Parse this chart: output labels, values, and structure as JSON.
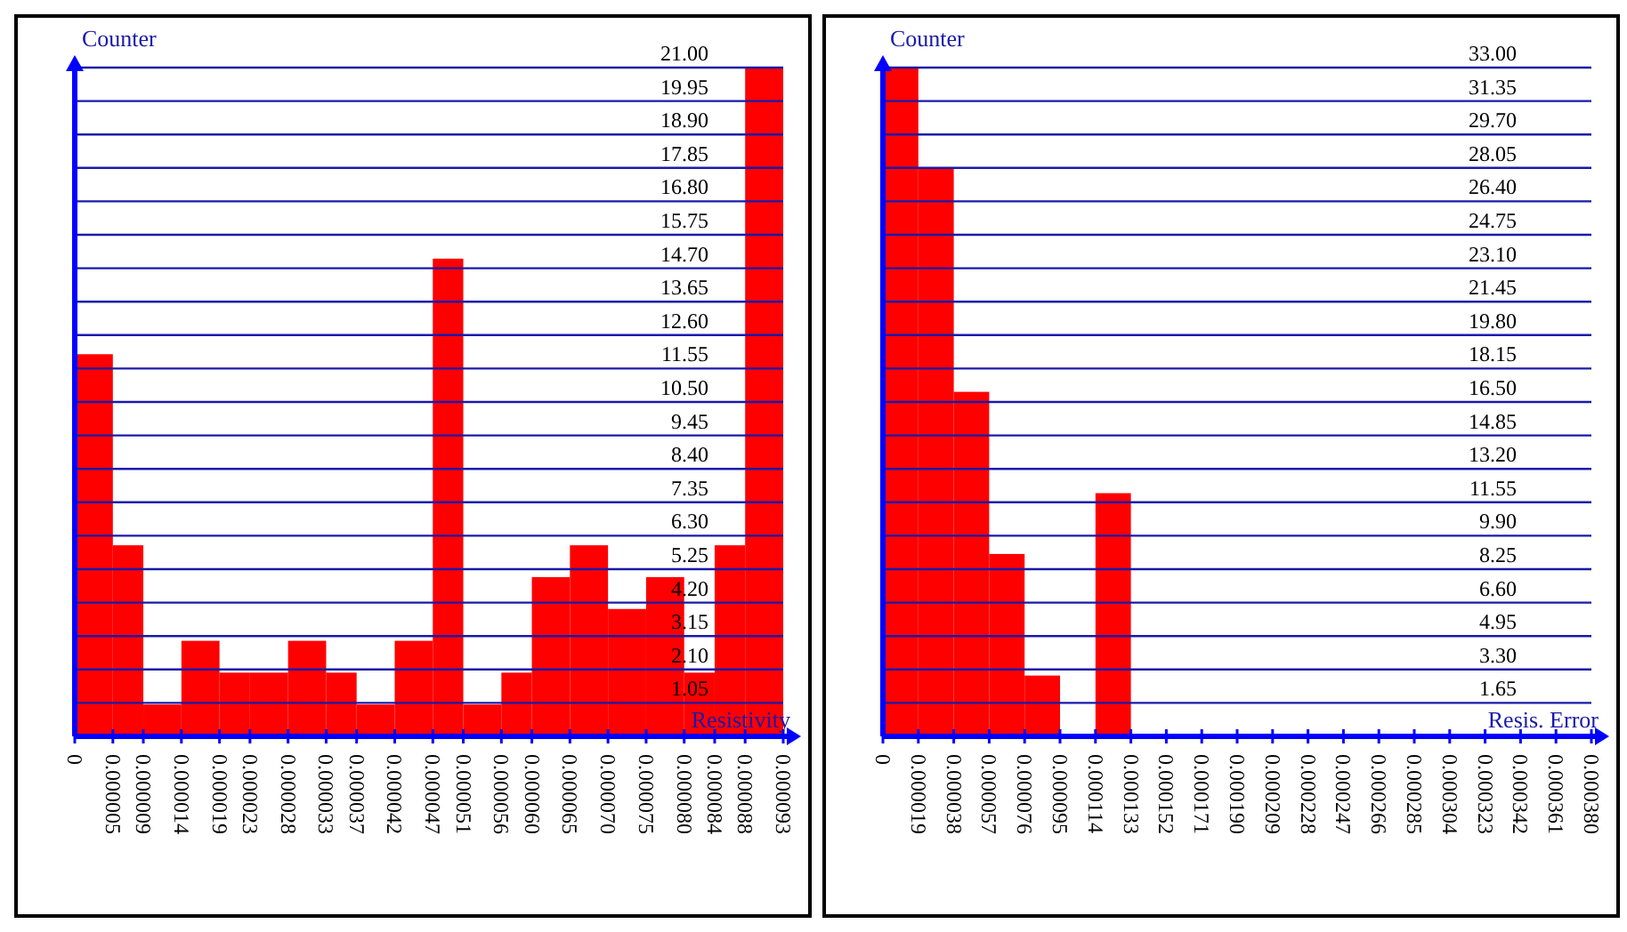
{
  "chart_data": [
    {
      "type": "histogram",
      "xlabel": "Resistivity",
      "ylabel": "Counter",
      "color": "#ff0000",
      "grid": "y",
      "legend": false,
      "bins": [
        0,
        5e-06,
        9e-06,
        1.4e-05,
        1.9e-05,
        2.3e-05,
        2.8e-05,
        3.3e-05,
        3.7e-05,
        4.2e-05,
        4.7e-05,
        5.1e-05,
        5.6e-05,
        6e-05,
        6.5e-05,
        7e-05,
        7.5e-05,
        8e-05,
        8.4e-05,
        8.8e-05,
        9.3e-05
      ],
      "values": [
        12,
        6,
        1,
        3,
        2,
        2,
        3,
        2,
        1,
        3,
        15,
        1,
        2,
        5,
        6,
        4,
        5,
        2,
        6,
        21
      ],
      "xlim": [
        0,
        9.3e-05
      ],
      "xticks": [
        {
          "value": 0,
          "label": "0"
        },
        {
          "value": 5e-06,
          "label": "0.000005"
        },
        {
          "value": 9e-06,
          "label": "0.000009"
        },
        {
          "value": 1.4e-05,
          "label": "0.000014"
        },
        {
          "value": 1.9e-05,
          "label": "0.000019"
        },
        {
          "value": 2.3e-05,
          "label": "0.000023"
        },
        {
          "value": 2.8e-05,
          "label": "0.000028"
        },
        {
          "value": 3.3e-05,
          "label": "0.000033"
        },
        {
          "value": 3.7e-05,
          "label": "0.000037"
        },
        {
          "value": 4.2e-05,
          "label": "0.000042"
        },
        {
          "value": 4.7e-05,
          "label": "0.000047"
        },
        {
          "value": 5.1e-05,
          "label": "0.000051"
        },
        {
          "value": 5.6e-05,
          "label": "0.000056"
        },
        {
          "value": 6e-05,
          "label": "0.000060"
        },
        {
          "value": 6.5e-05,
          "label": "0.000065"
        },
        {
          "value": 7e-05,
          "label": "0.000070"
        },
        {
          "value": 7.5e-05,
          "label": "0.000075"
        },
        {
          "value": 8e-05,
          "label": "0.000080"
        },
        {
          "value": 8.4e-05,
          "label": "0.000084"
        },
        {
          "value": 8.8e-05,
          "label": "0.000088"
        },
        {
          "value": 9.3e-05,
          "label": "0.000093"
        }
      ],
      "ylim": [
        0,
        21
      ],
      "yticks": [
        {
          "value": 1.05,
          "label": "1.05"
        },
        {
          "value": 2.1,
          "label": "2.10"
        },
        {
          "value": 3.15,
          "label": "3.15"
        },
        {
          "value": 4.2,
          "label": "4.20"
        },
        {
          "value": 5.25,
          "label": "5.25"
        },
        {
          "value": 6.3,
          "label": "6.30"
        },
        {
          "value": 7.35,
          "label": "7.35"
        },
        {
          "value": 8.4,
          "label": "8.40"
        },
        {
          "value": 9.45,
          "label": "9.45"
        },
        {
          "value": 10.5,
          "label": "10.50"
        },
        {
          "value": 11.55,
          "label": "11.55"
        },
        {
          "value": 12.6,
          "label": "12.60"
        },
        {
          "value": 13.65,
          "label": "13.65"
        },
        {
          "value": 14.7,
          "label": "14.70"
        },
        {
          "value": 15.75,
          "label": "15.75"
        },
        {
          "value": 16.8,
          "label": "16.80"
        },
        {
          "value": 17.85,
          "label": "17.85"
        },
        {
          "value": 18.9,
          "label": "18.90"
        },
        {
          "value": 19.95,
          "label": "19.95"
        },
        {
          "value": 21,
          "label": "21.00"
        }
      ]
    },
    {
      "type": "histogram",
      "xlabel": "Resis. Error",
      "ylabel": "Counter",
      "color": "#ff0000",
      "grid": "y",
      "legend": false,
      "bins": [
        0,
        1.9e-05,
        3.8e-05,
        5.7e-05,
        7.6e-05,
        9.5e-05,
        0.000114,
        0.000133,
        0.000152,
        0.000171,
        0.00019,
        0.000209,
        0.000228,
        0.000247,
        0.000266,
        0.000285,
        0.000304,
        0.000323,
        0.000342,
        0.000361,
        0.00038
      ],
      "values": [
        33,
        28,
        17,
        9,
        3,
        0,
        12,
        0,
        0,
        0,
        0,
        0,
        0,
        0,
        0,
        0,
        0,
        0,
        0,
        0
      ],
      "xlim": [
        0,
        0.00038
      ],
      "xticks": [
        {
          "value": 0,
          "label": "0"
        },
        {
          "value": 1.9e-05,
          "label": "0.000019"
        },
        {
          "value": 3.8e-05,
          "label": "0.000038"
        },
        {
          "value": 5.7e-05,
          "label": "0.000057"
        },
        {
          "value": 7.6e-05,
          "label": "0.000076"
        },
        {
          "value": 9.5e-05,
          "label": "0.000095"
        },
        {
          "value": 0.000114,
          "label": "0.000114"
        },
        {
          "value": 0.000133,
          "label": "0.000133"
        },
        {
          "value": 0.000152,
          "label": "0.000152"
        },
        {
          "value": 0.000171,
          "label": "0.000171"
        },
        {
          "value": 0.00019,
          "label": "0.000190"
        },
        {
          "value": 0.000209,
          "label": "0.000209"
        },
        {
          "value": 0.000228,
          "label": "0.000228"
        },
        {
          "value": 0.000247,
          "label": "0.000247"
        },
        {
          "value": 0.000266,
          "label": "0.000266"
        },
        {
          "value": 0.000285,
          "label": "0.000285"
        },
        {
          "value": 0.000304,
          "label": "0.000304"
        },
        {
          "value": 0.000323,
          "label": "0.000323"
        },
        {
          "value": 0.000342,
          "label": "0.000342"
        },
        {
          "value": 0.000361,
          "label": "0.000361"
        },
        {
          "value": 0.00038,
          "label": "0.000380"
        }
      ],
      "ylim": [
        0,
        33
      ],
      "yticks": [
        {
          "value": 1.65,
          "label": "1.65"
        },
        {
          "value": 3.3,
          "label": "3.30"
        },
        {
          "value": 4.95,
          "label": "4.95"
        },
        {
          "value": 6.6,
          "label": "6.60"
        },
        {
          "value": 8.25,
          "label": "8.25"
        },
        {
          "value": 9.9,
          "label": "9.90"
        },
        {
          "value": 11.55,
          "label": "11.55"
        },
        {
          "value": 13.2,
          "label": "13.20"
        },
        {
          "value": 14.85,
          "label": "14.85"
        },
        {
          "value": 16.5,
          "label": "16.50"
        },
        {
          "value": 18.15,
          "label": "18.15"
        },
        {
          "value": 19.8,
          "label": "19.80"
        },
        {
          "value": 21.45,
          "label": "21.45"
        },
        {
          "value": 23.1,
          "label": "23.10"
        },
        {
          "value": 24.75,
          "label": "24.75"
        },
        {
          "value": 26.4,
          "label": "26.40"
        },
        {
          "value": 28.05,
          "label": "28.05"
        },
        {
          "value": 29.7,
          "label": "29.70"
        },
        {
          "value": 31.35,
          "label": "31.35"
        },
        {
          "value": 33,
          "label": "33.00"
        }
      ]
    }
  ]
}
